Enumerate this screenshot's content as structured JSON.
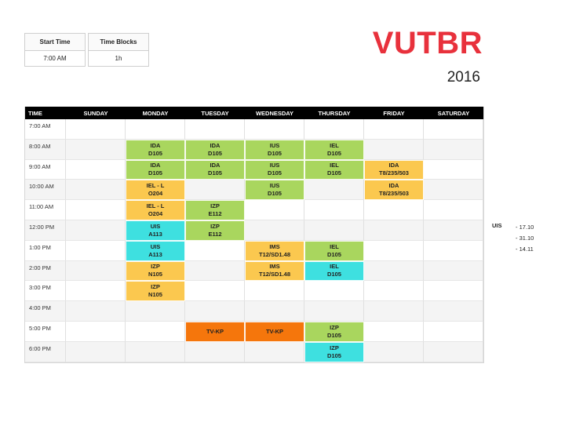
{
  "settings": {
    "start_time_label": "Start Time",
    "start_time_value": "7:00 AM",
    "time_blocks_label": "Time Blocks",
    "time_blocks_value": "1h"
  },
  "brand": "VUTBR",
  "year": "2016",
  "schedule": {
    "time_header": "TIME",
    "days": [
      "SUNDAY",
      "MONDAY",
      "TUESDAY",
      "WEDNESDAY",
      "THURSDAY",
      "FRIDAY",
      "SATURDAY"
    ],
    "times": [
      "7:00 AM",
      "8:00 AM",
      "9:00 AM",
      "10:00 AM",
      "11:00 AM",
      "12:00 PM",
      "1:00 PM",
      "2:00 PM",
      "3:00 PM",
      "4:00 PM",
      "5:00 PM",
      "6:00 PM"
    ],
    "events": [
      {
        "day": 1,
        "slot": 1,
        "course": "IDA",
        "room": "D105",
        "color": "#a9d65e"
      },
      {
        "day": 2,
        "slot": 1,
        "course": "IDA",
        "room": "D105",
        "color": "#a9d65e"
      },
      {
        "day": 3,
        "slot": 1,
        "course": "IUS",
        "room": "D105",
        "color": "#a9d65e"
      },
      {
        "day": 4,
        "slot": 1,
        "course": "IEL",
        "room": "D105",
        "color": "#a9d65e"
      },
      {
        "day": 1,
        "slot": 2,
        "course": "IDA",
        "room": "D105",
        "color": "#a9d65e"
      },
      {
        "day": 2,
        "slot": 2,
        "course": "IDA",
        "room": "D105",
        "color": "#a9d65e"
      },
      {
        "day": 3,
        "slot": 2,
        "course": "IUS",
        "room": "D105",
        "color": "#a9d65e"
      },
      {
        "day": 4,
        "slot": 2,
        "course": "IEL",
        "room": "D105",
        "color": "#a9d65e"
      },
      {
        "day": 5,
        "slot": 2,
        "course": "IDA",
        "room": "T8/235/503",
        "color": "#fbc84f"
      },
      {
        "day": 1,
        "slot": 3,
        "course": "IEL - L",
        "room": "O204",
        "color": "#fbc84f"
      },
      {
        "day": 3,
        "slot": 3,
        "course": "IUS",
        "room": "D105",
        "color": "#a9d65e"
      },
      {
        "day": 5,
        "slot": 3,
        "course": "IDA",
        "room": "T8/235/503",
        "color": "#fbc84f"
      },
      {
        "day": 1,
        "slot": 4,
        "course": "IEL - L",
        "room": "O204",
        "color": "#fbc84f"
      },
      {
        "day": 2,
        "slot": 4,
        "course": "IZP",
        "room": "E112",
        "color": "#a9d65e"
      },
      {
        "day": 1,
        "slot": 5,
        "course": "UIS",
        "room": "A113",
        "color": "#3ee0e0"
      },
      {
        "day": 2,
        "slot": 5,
        "course": "IZP",
        "room": "E112",
        "color": "#a9d65e"
      },
      {
        "day": 1,
        "slot": 6,
        "course": "UIS",
        "room": "A113",
        "color": "#3ee0e0"
      },
      {
        "day": 3,
        "slot": 6,
        "course": "IMS",
        "room": "T12/SD1.48",
        "color": "#fbc84f"
      },
      {
        "day": 4,
        "slot": 6,
        "course": "IEL",
        "room": "D105",
        "color": "#a9d65e"
      },
      {
        "day": 1,
        "slot": 7,
        "course": "IZP",
        "room": "N105",
        "color": "#fbc84f"
      },
      {
        "day": 3,
        "slot": 7,
        "course": "IMS",
        "room": "T12/SD1.48",
        "color": "#fbc84f"
      },
      {
        "day": 4,
        "slot": 7,
        "course": "IEL",
        "room": "D105",
        "color": "#3ee0e0"
      },
      {
        "day": 1,
        "slot": 8,
        "course": "IZP",
        "room": "N105",
        "color": "#fbc84f"
      },
      {
        "day": 2,
        "slot": 10,
        "course": "TV-KP",
        "room": "",
        "color": "#f5760c"
      },
      {
        "day": 3,
        "slot": 10,
        "course": "TV-KP",
        "room": "",
        "color": "#f5760c"
      },
      {
        "day": 4,
        "slot": 10,
        "course": "IZP",
        "room": "D105",
        "color": "#a9d65e"
      },
      {
        "day": 4,
        "slot": 11,
        "course": "IZP",
        "room": "D105",
        "color": "#3ee0e0"
      }
    ]
  },
  "side_note": {
    "label": "UIS",
    "dates": [
      "- 17.10",
      "- 31.10",
      "- 14.11"
    ]
  }
}
